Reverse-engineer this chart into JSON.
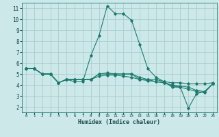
{
  "title": "",
  "xlabel": "Humidex (Indice chaleur)",
  "ylabel": "",
  "bg_color": "#cce8e8",
  "grid_color": "#aacece",
  "line_color": "#1a7a6e",
  "xlim": [
    -0.5,
    23.5
  ],
  "ylim": [
    1.5,
    11.5
  ],
  "xticks": [
    0,
    1,
    2,
    3,
    4,
    5,
    6,
    7,
    8,
    9,
    10,
    11,
    12,
    13,
    14,
    15,
    16,
    17,
    18,
    19,
    20,
    21,
    22,
    23
  ],
  "yticks": [
    2,
    3,
    4,
    5,
    6,
    7,
    8,
    9,
    10,
    11
  ],
  "series": [
    {
      "x": [
        0,
        1,
        2,
        3,
        4,
        5,
        6,
        7,
        8,
        9,
        10,
        11,
        12,
        13,
        14,
        15,
        16,
        17,
        18,
        19,
        20,
        21,
        22,
        23
      ],
      "y": [
        5.5,
        5.5,
        5.0,
        5.0,
        4.2,
        4.5,
        4.3,
        4.3,
        6.7,
        8.5,
        11.2,
        10.5,
        10.5,
        9.9,
        7.7,
        5.5,
        4.7,
        4.3,
        3.8,
        3.8,
        1.9,
        3.2,
        3.4,
        4.1
      ]
    },
    {
      "x": [
        0,
        1,
        2,
        3,
        4,
        5,
        6,
        7,
        8,
        9,
        10,
        11,
        12,
        13,
        14,
        15,
        16,
        17,
        18,
        19,
        20,
        21,
        22,
        23
      ],
      "y": [
        5.5,
        5.5,
        5.0,
        5.0,
        4.2,
        4.5,
        4.5,
        4.5,
        4.5,
        5.0,
        5.0,
        5.0,
        5.0,
        5.0,
        4.5,
        4.5,
        4.5,
        4.3,
        4.2,
        4.2,
        4.1,
        4.1,
        4.1,
        4.2
      ]
    },
    {
      "x": [
        0,
        1,
        2,
        3,
        4,
        5,
        6,
        7,
        8,
        9,
        10,
        11,
        12,
        13,
        14,
        15,
        16,
        17,
        18,
        19,
        20,
        21,
        22,
        23
      ],
      "y": [
        5.5,
        5.5,
        5.0,
        5.0,
        4.2,
        4.5,
        4.5,
        4.5,
        4.5,
        5.0,
        5.1,
        5.0,
        5.0,
        5.0,
        4.7,
        4.5,
        4.3,
        4.2,
        3.9,
        3.8,
        3.6,
        3.4,
        3.3,
        4.1
      ]
    },
    {
      "x": [
        0,
        1,
        2,
        3,
        4,
        5,
        6,
        7,
        8,
        9,
        10,
        11,
        12,
        13,
        14,
        15,
        16,
        17,
        18,
        19,
        20,
        21,
        22,
        23
      ],
      "y": [
        5.5,
        5.5,
        5.0,
        5.0,
        4.2,
        4.5,
        4.5,
        4.5,
        4.5,
        4.8,
        4.9,
        4.9,
        4.8,
        4.7,
        4.5,
        4.4,
        4.3,
        4.2,
        4.0,
        3.9,
        3.8,
        3.5,
        3.4,
        4.1
      ]
    }
  ]
}
